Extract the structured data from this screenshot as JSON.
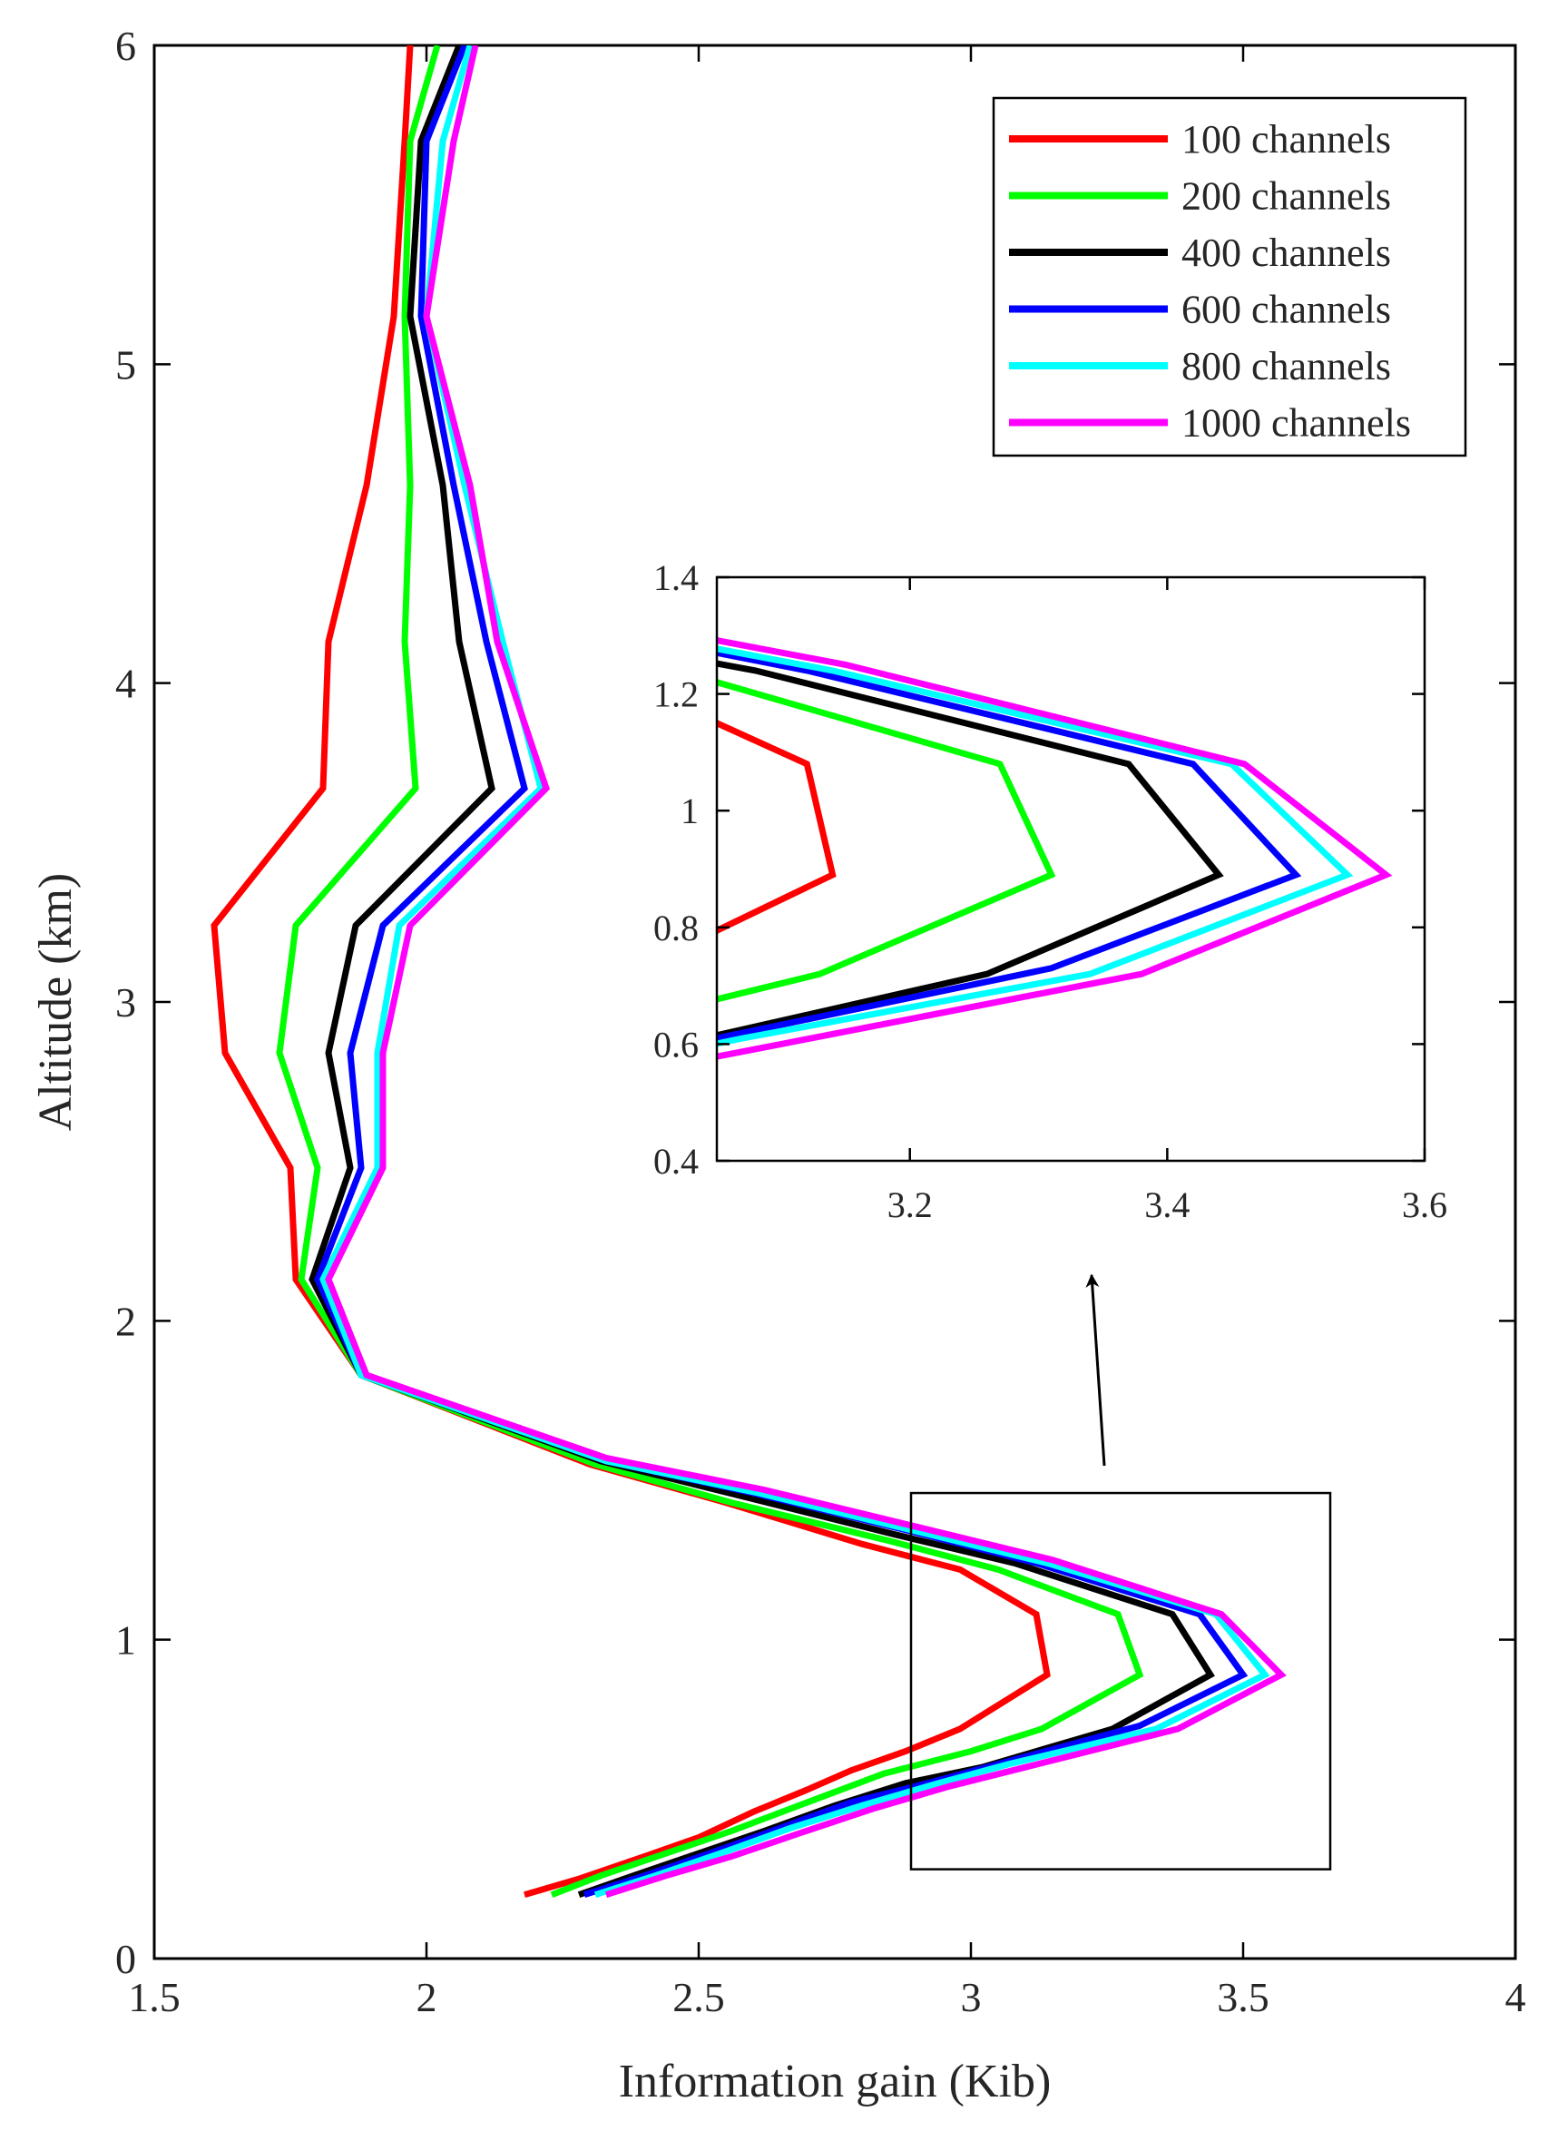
{
  "chart_data": {
    "type": "line",
    "xlabel": "Information gain (Kib)",
    "ylabel": "Altitude (km)",
    "xlim": [
      1.5,
      4
    ],
    "ylim": [
      0,
      6
    ],
    "xticks": [
      "1.5",
      "2",
      "2.5",
      "3",
      "3.5",
      "4"
    ],
    "yticks": [
      "0",
      "1",
      "2",
      "3",
      "4",
      "5",
      "6"
    ],
    "legend_position": "top-right",
    "series": [
      {
        "name": "100 channels",
        "color": "#ff0000",
        "points": [
          [
            2.18,
            0.2
          ],
          [
            2.28,
            0.25
          ],
          [
            2.4,
            0.32
          ],
          [
            2.5,
            0.38
          ],
          [
            2.6,
            0.46
          ],
          [
            2.7,
            0.53
          ],
          [
            2.78,
            0.59
          ],
          [
            2.88,
            0.65
          ],
          [
            2.98,
            0.72
          ],
          [
            3.14,
            0.89
          ],
          [
            3.12,
            1.08
          ],
          [
            2.98,
            1.22
          ],
          [
            2.8,
            1.3
          ],
          [
            2.55,
            1.43
          ],
          [
            2.3,
            1.55
          ],
          [
            1.88,
            1.83
          ],
          [
            1.76,
            2.13
          ],
          [
            1.75,
            2.48
          ],
          [
            1.63,
            2.84
          ],
          [
            1.61,
            3.24
          ],
          [
            1.81,
            3.67
          ],
          [
            1.82,
            4.13
          ],
          [
            1.89,
            4.62
          ],
          [
            1.94,
            5.15
          ],
          [
            1.96,
            5.7
          ],
          [
            1.97,
            6.0
          ]
        ]
      },
      {
        "name": "200 channels",
        "color": "#00ff00",
        "points": [
          [
            2.23,
            0.2
          ],
          [
            2.32,
            0.26
          ],
          [
            2.44,
            0.33
          ],
          [
            2.56,
            0.4
          ],
          [
            2.7,
            0.49
          ],
          [
            2.84,
            0.58
          ],
          [
            3.0,
            0.65
          ],
          [
            3.13,
            0.72
          ],
          [
            3.31,
            0.89
          ],
          [
            3.27,
            1.08
          ],
          [
            3.05,
            1.22
          ],
          [
            2.85,
            1.31
          ],
          [
            2.56,
            1.43
          ],
          [
            2.31,
            1.55
          ],
          [
            1.88,
            1.83
          ],
          [
            1.77,
            2.13
          ],
          [
            1.8,
            2.48
          ],
          [
            1.73,
            2.84
          ],
          [
            1.76,
            3.24
          ],
          [
            1.98,
            3.67
          ],
          [
            1.96,
            4.13
          ],
          [
            1.97,
            4.62
          ],
          [
            1.96,
            5.15
          ],
          [
            1.97,
            5.7
          ],
          [
            2.02,
            6.0
          ]
        ]
      },
      {
        "name": "400 channels",
        "color": "#000000",
        "points": [
          [
            2.28,
            0.2
          ],
          [
            2.38,
            0.26
          ],
          [
            2.5,
            0.33
          ],
          [
            2.62,
            0.4
          ],
          [
            2.75,
            0.48
          ],
          [
            2.88,
            0.55
          ],
          [
            3.02,
            0.6
          ],
          [
            3.26,
            0.72
          ],
          [
            3.44,
            0.89
          ],
          [
            3.37,
            1.08
          ],
          [
            3.08,
            1.24
          ],
          [
            2.86,
            1.33
          ],
          [
            2.58,
            1.45
          ],
          [
            2.32,
            1.56
          ],
          [
            1.88,
            1.83
          ],
          [
            1.79,
            2.13
          ],
          [
            1.86,
            2.48
          ],
          [
            1.82,
            2.84
          ],
          [
            1.87,
            3.24
          ],
          [
            2.12,
            3.67
          ],
          [
            2.06,
            4.13
          ],
          [
            2.03,
            4.62
          ],
          [
            1.97,
            5.15
          ],
          [
            1.99,
            5.7
          ],
          [
            2.06,
            6.0
          ]
        ]
      },
      {
        "name": "600 channels",
        "color": "#0000ff",
        "points": [
          [
            2.29,
            0.2
          ],
          [
            2.4,
            0.26
          ],
          [
            2.52,
            0.33
          ],
          [
            2.65,
            0.41
          ],
          [
            2.78,
            0.49
          ],
          [
            2.92,
            0.55
          ],
          [
            3.05,
            0.61
          ],
          [
            3.31,
            0.73
          ],
          [
            3.5,
            0.89
          ],
          [
            3.42,
            1.08
          ],
          [
            3.12,
            1.24
          ],
          [
            2.89,
            1.34
          ],
          [
            2.6,
            1.46
          ],
          [
            2.33,
            1.56
          ],
          [
            1.88,
            1.83
          ],
          [
            1.8,
            2.13
          ],
          [
            1.88,
            2.48
          ],
          [
            1.86,
            2.84
          ],
          [
            1.92,
            3.24
          ],
          [
            2.18,
            3.67
          ],
          [
            2.11,
            4.13
          ],
          [
            2.05,
            4.62
          ],
          [
            1.99,
            5.15
          ],
          [
            2.0,
            5.7
          ],
          [
            2.07,
            6.0
          ]
        ]
      },
      {
        "name": "800 channels",
        "color": "#00ffff",
        "points": [
          [
            2.31,
            0.2
          ],
          [
            2.42,
            0.26
          ],
          [
            2.54,
            0.33
          ],
          [
            2.67,
            0.41
          ],
          [
            2.8,
            0.48
          ],
          [
            2.94,
            0.55
          ],
          [
            3.07,
            0.61
          ],
          [
            3.34,
            0.72
          ],
          [
            3.54,
            0.89
          ],
          [
            3.45,
            1.08
          ],
          [
            3.14,
            1.24
          ],
          [
            2.9,
            1.34
          ],
          [
            2.61,
            1.46
          ],
          [
            2.33,
            1.56
          ],
          [
            1.88,
            1.83
          ],
          [
            1.81,
            2.13
          ],
          [
            1.91,
            2.48
          ],
          [
            1.91,
            2.84
          ],
          [
            1.95,
            3.24
          ],
          [
            2.21,
            3.67
          ],
          [
            2.14,
            4.13
          ],
          [
            2.07,
            4.62
          ],
          [
            2.0,
            5.15
          ],
          [
            2.03,
            5.7
          ],
          [
            2.08,
            6.0
          ]
        ]
      },
      {
        "name": "1000 channels",
        "color": "#ff00ff",
        "points": [
          [
            2.33,
            0.2
          ],
          [
            2.44,
            0.26
          ],
          [
            2.56,
            0.32
          ],
          [
            2.68,
            0.39
          ],
          [
            2.82,
            0.47
          ],
          [
            2.96,
            0.54
          ],
          [
            3.1,
            0.6
          ],
          [
            3.38,
            0.72
          ],
          [
            3.57,
            0.89
          ],
          [
            3.46,
            1.08
          ],
          [
            3.15,
            1.25
          ],
          [
            2.91,
            1.35
          ],
          [
            2.62,
            1.47
          ],
          [
            2.33,
            1.57
          ],
          [
            1.89,
            1.83
          ],
          [
            1.82,
            2.13
          ],
          [
            1.92,
            2.48
          ],
          [
            1.92,
            2.84
          ],
          [
            1.97,
            3.24
          ],
          [
            2.22,
            3.67
          ],
          [
            2.13,
            4.13
          ],
          [
            2.08,
            4.62
          ],
          [
            2.0,
            5.15
          ],
          [
            2.05,
            5.7
          ],
          [
            2.09,
            6.0
          ]
        ]
      }
    ],
    "zoom_box": {
      "xlim": [
        2.89,
        3.66
      ],
      "ylim": [
        0.28,
        1.46
      ]
    },
    "inset": {
      "xlim": [
        3.05,
        3.6
      ],
      "ylim": [
        0.4,
        1.4
      ],
      "xticks": [
        "3.2",
        "3.4",
        "3.6"
      ],
      "yticks": [
        "0.4",
        "0.6",
        "0.8",
        "1",
        "1.2",
        "1.4"
      ]
    }
  }
}
